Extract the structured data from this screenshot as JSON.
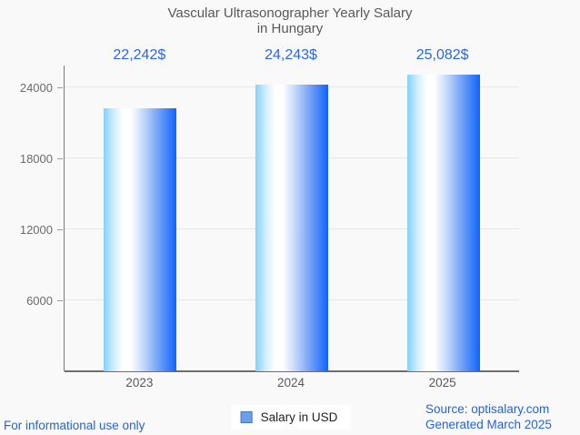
{
  "title": {
    "line1": "Vascular Ultrasonographer Yearly Salary",
    "line2": "in Hungary"
  },
  "chart_data": {
    "type": "bar",
    "title": "Vascular Ultrasonographer Yearly Salary in Hungary",
    "categories": [
      "2023",
      "2024",
      "2025"
    ],
    "series": [
      {
        "name": "Salary in USD",
        "values": [
          22242,
          24243,
          25082
        ],
        "value_labels": [
          "22,242$",
          "24,243$",
          "25,082$"
        ]
      }
    ],
    "xlabel": "",
    "ylabel": "",
    "yticks": [
      6000,
      12000,
      18000,
      24000
    ],
    "ylim": [
      0,
      25850
    ],
    "grid": true,
    "legend_position": "bottom"
  },
  "legend": {
    "label": "Salary in USD"
  },
  "footer": {
    "left": "For informational use only",
    "source": "Source: optisalary.com",
    "generated": "Generated March 2025"
  },
  "colors": {
    "value_label": "#2b67e0",
    "footer_text": "#2264d8",
    "title_text": "#57585a",
    "bar_gradient_left": "#85d1fa",
    "bar_gradient_mid": "#ffffff",
    "bar_gradient_right": "#0f64fd",
    "legend_marker": "#6d9eeb",
    "axis_line": "#6e6e6e",
    "gridline": "#e7e7e7",
    "tick_label": "#6b6b6b",
    "background": "#f9f9f9"
  }
}
